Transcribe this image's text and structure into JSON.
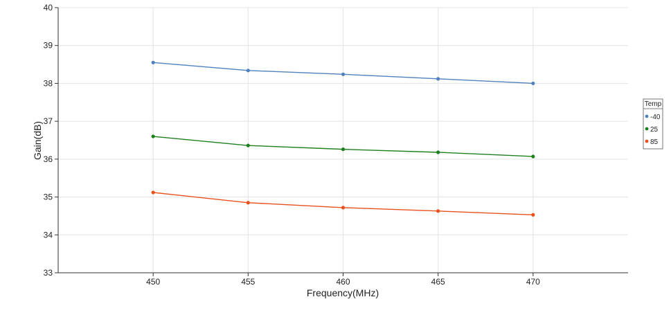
{
  "chart_data": {
    "type": "line",
    "title": "",
    "xlabel": "Frequency(MHz)",
    "ylabel": "Gain(dB)",
    "x": [
      450,
      455,
      460,
      465,
      470
    ],
    "xlim": [
      445,
      475
    ],
    "ylim": [
      33,
      40
    ],
    "xticks": [
      "450",
      "455",
      "460",
      "465",
      "470"
    ],
    "yticks": [
      "33",
      "34",
      "35",
      "36",
      "37",
      "38",
      "39",
      "40"
    ],
    "grid": true,
    "legend": {
      "title": "Temp",
      "placement": "right",
      "entries": [
        "-40",
        "25",
        "85"
      ]
    },
    "series": [
      {
        "name": "-40",
        "color": "#4f81bd",
        "values": [
          38.55,
          38.34,
          38.24,
          38.12,
          38.0
        ]
      },
      {
        "name": "25",
        "color": "#1e7f1e",
        "values": [
          36.6,
          36.36,
          36.26,
          36.18,
          36.07
        ]
      },
      {
        "name": "85",
        "color": "#e8501c",
        "values": [
          35.12,
          34.85,
          34.72,
          34.63,
          34.53
        ]
      }
    ]
  }
}
